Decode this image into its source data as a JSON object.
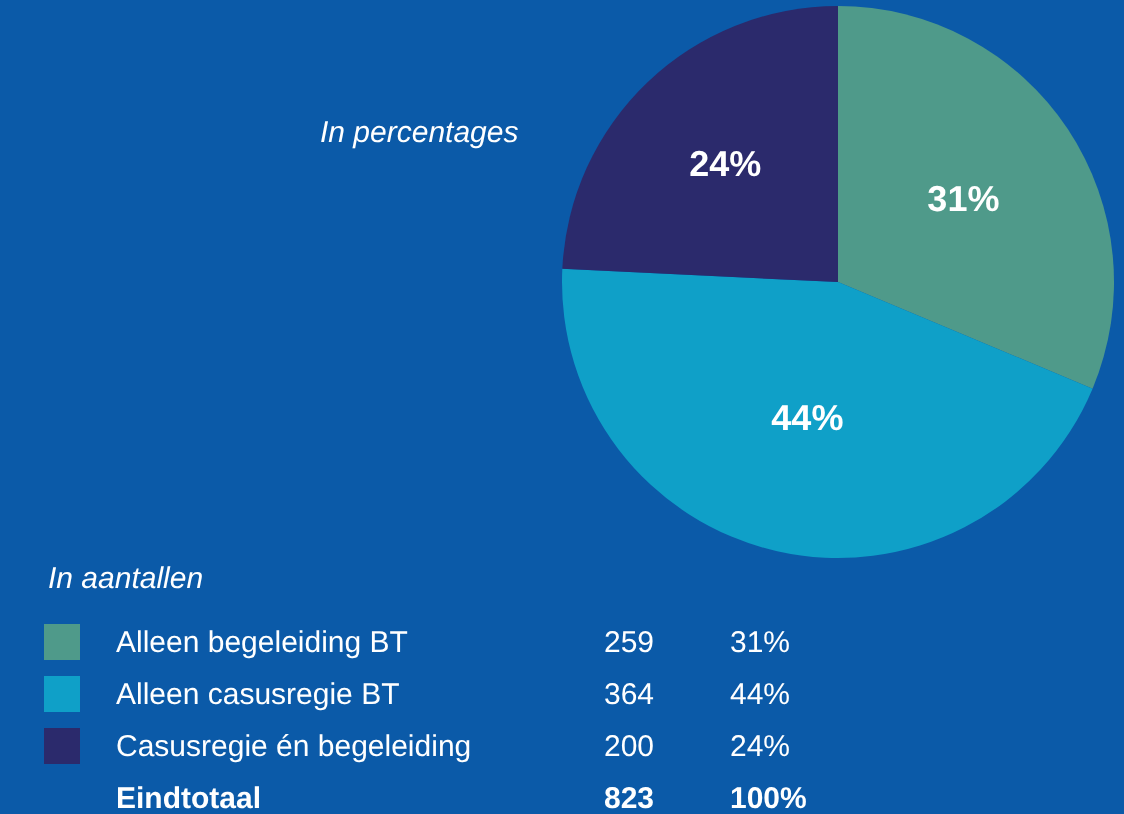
{
  "chart_data": {
    "type": "pie",
    "subtitle": "In percentages",
    "legend_title": "In aantallen",
    "legend": "bottom left",
    "categories": [
      "Alleen begeleiding BT",
      "Alleen casusregie BT",
      "Casusregie én begeleiding"
    ],
    "values": [
      31,
      44,
      24
    ],
    "colors": [
      "#4f9a8a",
      "#0fa0c8",
      "#2b2a6c"
    ],
    "value_labels": [
      "31%",
      "44%",
      "24%"
    ],
    "annotations": [
      "259",
      "364",
      "200",
      "Eindtotaal",
      "823",
      "100%"
    ]
  }
}
